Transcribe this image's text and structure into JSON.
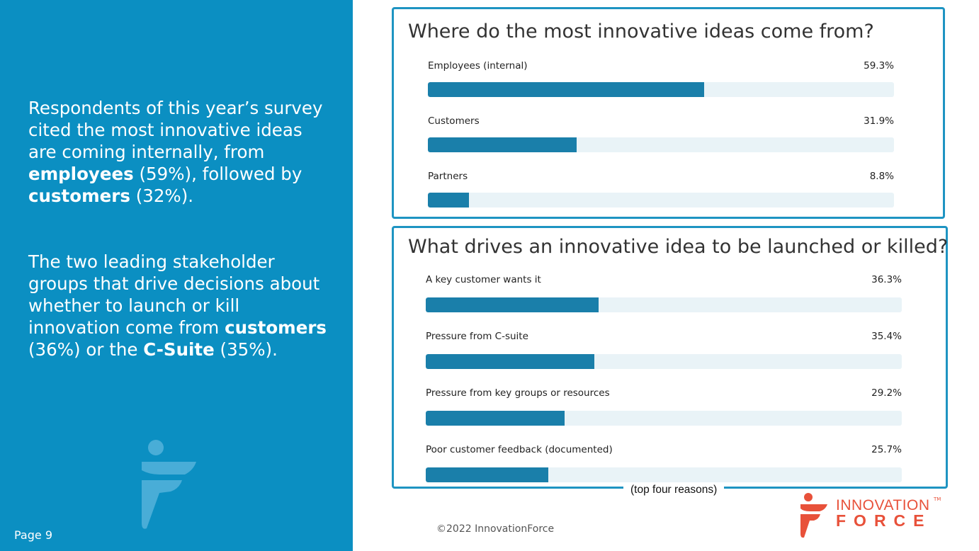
{
  "sidebar": {
    "paragraph1": [
      {
        "text": "Respondents of this year’s survey cited the most innovative ideas are coming internally, from ",
        "bold": false
      },
      {
        "text": "employees",
        "bold": true
      },
      {
        "text": " (59%), followed by ",
        "bold": false
      },
      {
        "text": "customers",
        "bold": true
      },
      {
        "text": " (32%).",
        "bold": false
      }
    ],
    "paragraph2": [
      {
        "text": "The two leading stakeholder groups that drive decisions about whether to launch or kill innovation come from ",
        "bold": false
      },
      {
        "text": "customers",
        "bold": true
      },
      {
        "text": " (36%) or the ",
        "bold": false
      },
      {
        "text": "C-Suite",
        "bold": true
      },
      {
        "text": " (35%).",
        "bold": false
      }
    ],
    "page_label": "Page 9"
  },
  "chart_data": [
    {
      "type": "bar",
      "orientation": "horizontal",
      "title": "Where do the most innovative ideas come from?",
      "categories": [
        "Employees (internal)",
        "Customers",
        "Partners"
      ],
      "values": [
        59.3,
        31.9,
        8.8
      ],
      "value_labels": [
        "59.3%",
        "31.9%",
        "8.8%"
      ],
      "xlim": [
        0,
        100
      ],
      "color": "#1a7faa",
      "track_color": "#e9f3f7"
    },
    {
      "type": "bar",
      "orientation": "horizontal",
      "title": "What drives an innovative idea to be launched or killed?",
      "categories": [
        "A key customer wants it",
        "Pressure from C-suite",
        "Pressure from key groups or resources",
        "Poor customer feedback (documented)"
      ],
      "values": [
        36.3,
        35.4,
        29.2,
        25.7
      ],
      "value_labels": [
        "36.3%",
        "35.4%",
        "29.2%",
        "25.7%"
      ],
      "xlim": [
        0,
        100
      ],
      "color": "#1a7faa",
      "track_color": "#e9f3f7",
      "annotation": "(top four reasons)"
    }
  ],
  "footer": {
    "copyright": "©2022 InnovationForce"
  },
  "logo": {
    "line1": "INNOVATION",
    "line2": "FORCE",
    "tm": "TM",
    "color": "#e8513a"
  },
  "colors": {
    "panel": "#0b8fc2",
    "card_border": "#1e94c2"
  }
}
